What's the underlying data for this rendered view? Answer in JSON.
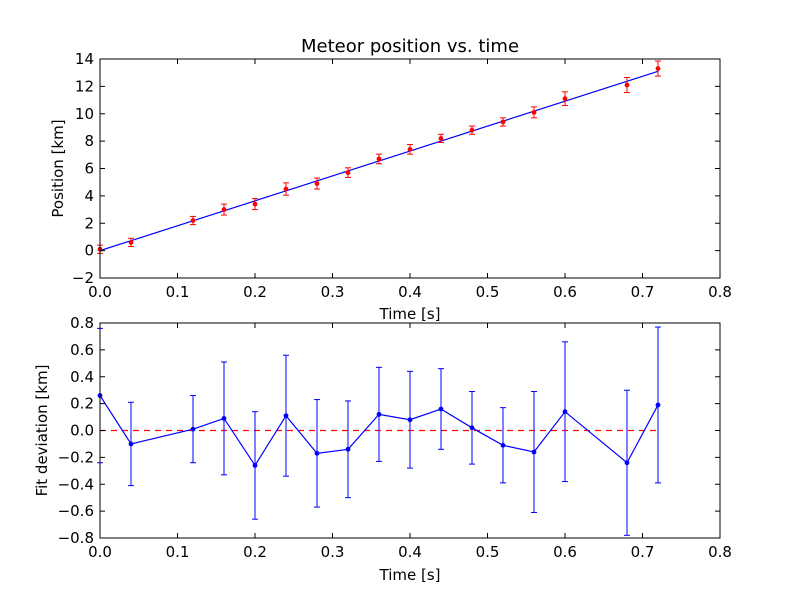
{
  "chart_data": [
    {
      "type": "scatter",
      "title": "Meteor position vs. time",
      "xlabel": "Time [s]",
      "ylabel": "Position [km]",
      "xlim": [
        0.0,
        0.8
      ],
      "ylim": [
        -2,
        14
      ],
      "xticks": [
        "0.0",
        "0.1",
        "0.2",
        "0.3",
        "0.4",
        "0.5",
        "0.6",
        "0.7",
        "0.8"
      ],
      "yticks": [
        "−2",
        "0",
        "2",
        "4",
        "6",
        "8",
        "10",
        "12",
        "14"
      ],
      "grid": false,
      "colors": {
        "points": "#ff0000",
        "errorbars": "#ff0000",
        "fit_line": "#0000ff"
      },
      "series": [
        {
          "kind": "errorbar",
          "x": [
            0.0,
            0.04,
            0.12,
            0.16,
            0.2,
            0.24,
            0.28,
            0.32,
            0.36,
            0.4,
            0.44,
            0.48,
            0.52,
            0.56,
            0.6,
            0.68,
            0.72
          ],
          "y": [
            0.1,
            0.6,
            2.2,
            3.0,
            3.4,
            4.5,
            4.9,
            5.7,
            6.7,
            7.4,
            8.2,
            8.8,
            9.4,
            10.1,
            11.1,
            12.1,
            13.3
          ],
          "yerr": [
            0.3,
            0.3,
            0.3,
            0.4,
            0.4,
            0.45,
            0.4,
            0.35,
            0.35,
            0.35,
            0.3,
            0.3,
            0.3,
            0.4,
            0.5,
            0.55,
            0.55
          ]
        },
        {
          "kind": "fit-line",
          "x": [
            0.0,
            0.72
          ],
          "y": [
            0.0,
            13.1
          ]
        }
      ]
    },
    {
      "type": "line",
      "title": "",
      "xlabel": "Time [s]",
      "ylabel": "Fit deviation [km]",
      "xlim": [
        0.0,
        0.8
      ],
      "ylim": [
        -0.8,
        0.8
      ],
      "xticks": [
        "0.0",
        "0.1",
        "0.2",
        "0.3",
        "0.4",
        "0.5",
        "0.6",
        "0.7",
        "0.8"
      ],
      "yticks": [
        "−0.8",
        "−0.6",
        "−0.4",
        "−0.2",
        "0.0",
        "0.2",
        "0.4",
        "0.6",
        "0.8"
      ],
      "grid": false,
      "colors": {
        "series": "#0000ff",
        "zero_line": "#ff0000"
      },
      "reference_line": {
        "y": 0.0,
        "x": [
          0.0,
          0.72
        ],
        "style": "dashed"
      },
      "series": [
        {
          "kind": "errorbar",
          "x": [
            0.0,
            0.04,
            0.12,
            0.16,
            0.2,
            0.24,
            0.28,
            0.32,
            0.36,
            0.4,
            0.44,
            0.48,
            0.52,
            0.56,
            0.6,
            0.68,
            0.72
          ],
          "y": [
            0.26,
            -0.1,
            0.01,
            0.09,
            -0.26,
            0.11,
            -0.17,
            -0.14,
            0.12,
            0.08,
            0.16,
            0.02,
            -0.11,
            -0.16,
            0.14,
            -0.24,
            0.19
          ],
          "yerr": [
            0.5,
            0.31,
            0.25,
            0.42,
            0.4,
            0.45,
            0.4,
            0.36,
            0.35,
            0.36,
            0.3,
            0.27,
            0.28,
            0.45,
            0.52,
            0.54,
            0.58
          ]
        }
      ]
    }
  ]
}
